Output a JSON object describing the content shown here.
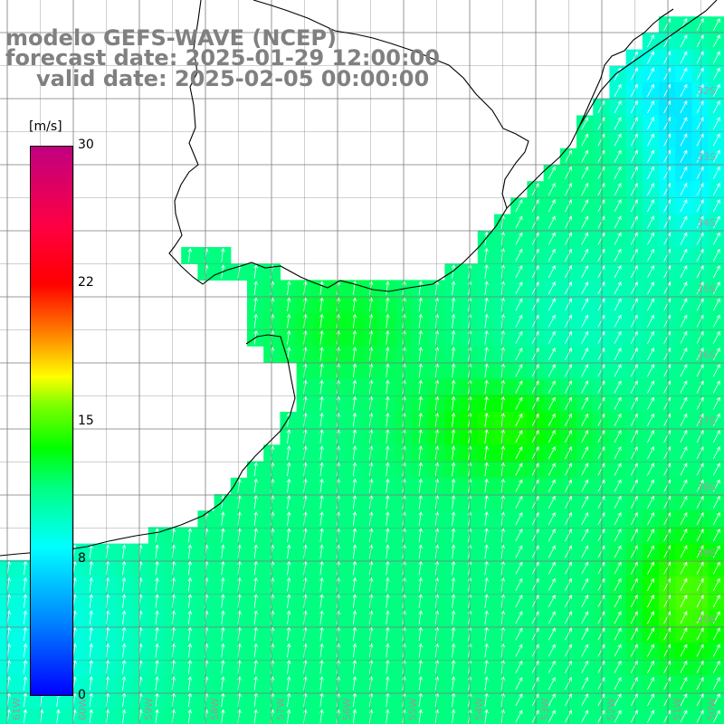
{
  "title": {
    "line1": "modelo GEFS-WAVE (NCEP)",
    "line2": "forecast date: 2025-01-29 12:00:00",
    "line3": "valid date: 2025-02-05 00:00:00"
  },
  "colorbar": {
    "unit": "[m/s]",
    "ticks": [
      "30",
      "22",
      "15",
      "8",
      "0"
    ],
    "min": 0,
    "max": 30,
    "colors": [
      "#0000ff",
      "#0080ff",
      "#00ffff",
      "#00ff80",
      "#00ff00",
      "#80ff00",
      "#ffff00",
      "#ff8000",
      "#ff0000",
      "#c00080"
    ]
  },
  "lat_labels": [
    "32S",
    "33S",
    "34S",
    "35S",
    "36S",
    "37S",
    "38S",
    "39S",
    "40S"
  ],
  "lon_labels": [
    "61W",
    "60W",
    "59W",
    "58W",
    "57W",
    "56W",
    "55W",
    "54W",
    "53W",
    "52W",
    "51W",
    "50W"
  ],
  "colors": {
    "land": "#ffffff",
    "grid": "#7a7a7a",
    "coast": "#000000",
    "arrow": "#ffffff"
  }
}
